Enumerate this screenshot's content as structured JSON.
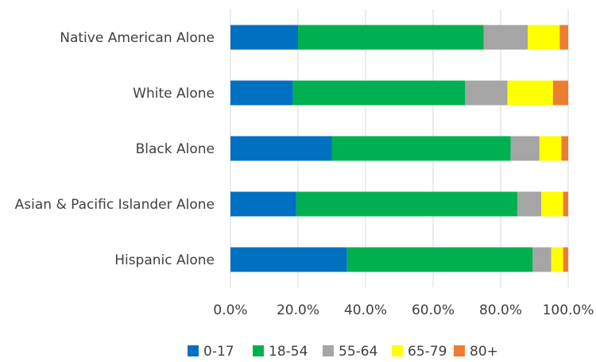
{
  "chart_data": {
    "type": "bar",
    "orientation": "horizontal",
    "stacked": true,
    "categories": [
      "Native American Alone",
      "White Alone",
      "Black Alone",
      "Asian & Pacific Islander Alone",
      "Hispanic Alone"
    ],
    "series": [
      {
        "name": "0-17",
        "color": "#0070C0",
        "values": [
          20.0,
          18.5,
          30.0,
          19.5,
          34.5
        ]
      },
      {
        "name": "18-54",
        "color": "#00B050",
        "values": [
          55.0,
          51.0,
          53.0,
          65.5,
          55.0
        ]
      },
      {
        "name": "55-64",
        "color": "#A5A5A5",
        "values": [
          13.0,
          12.5,
          8.5,
          7.0,
          5.5
        ]
      },
      {
        "name": "65-79",
        "color": "#FFFF00",
        "values": [
          9.5,
          13.5,
          6.5,
          6.5,
          3.5
        ]
      },
      {
        "name": "80+",
        "color": "#ED7D31",
        "values": [
          2.5,
          4.5,
          2.0,
          1.5,
          1.5
        ]
      }
    ],
    "x_ticks": [
      "0.0%",
      "20.0%",
      "40.0%",
      "60.0%",
      "80.0%",
      "100.0%"
    ],
    "xlim": [
      0,
      100
    ],
    "grid": "vertical",
    "legend_position": "bottom"
  }
}
